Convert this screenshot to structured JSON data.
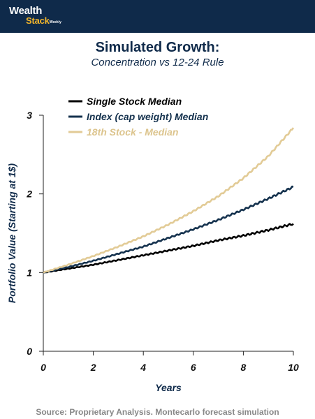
{
  "header": {
    "logo_top": "Wealth",
    "logo_bottom": "Stack",
    "logo_suffix": "Weekly"
  },
  "title": "Simulated Growth:",
  "subtitle": "Concentration vs 12-24 Rule",
  "source": "Source: Proprietary Analysis. Montecarlo forecast simulation",
  "chart_data": {
    "type": "line",
    "xlabel": "Years",
    "ylabel": "Portfolio Value (Starting at 1$)",
    "xlim": [
      0,
      10
    ],
    "ylim": [
      0,
      3
    ],
    "xticks": [
      "0",
      "2",
      "4",
      "6",
      "8",
      "10"
    ],
    "yticks": [
      "0",
      "1",
      "2",
      "3"
    ],
    "grid": false,
    "legend_position": "top-left",
    "x": [
      0,
      1,
      2,
      3,
      4,
      5,
      6,
      7,
      8,
      9,
      10
    ],
    "series": [
      {
        "name": "Single Stock Median",
        "color": "#000000",
        "values": [
          1.0,
          1.05,
          1.1,
          1.16,
          1.22,
          1.28,
          1.34,
          1.41,
          1.47,
          1.54,
          1.62
        ]
      },
      {
        "name": "Index (cap weight) Median",
        "color": "#15324e",
        "values": [
          1.0,
          1.07,
          1.15,
          1.24,
          1.33,
          1.44,
          1.55,
          1.67,
          1.8,
          1.94,
          2.09
        ]
      },
      {
        "name": "18th Stock - Median",
        "color": "#e2cb96",
        "values": [
          1.0,
          1.1,
          1.21,
          1.33,
          1.46,
          1.61,
          1.78,
          1.97,
          2.2,
          2.48,
          2.84
        ]
      }
    ]
  }
}
